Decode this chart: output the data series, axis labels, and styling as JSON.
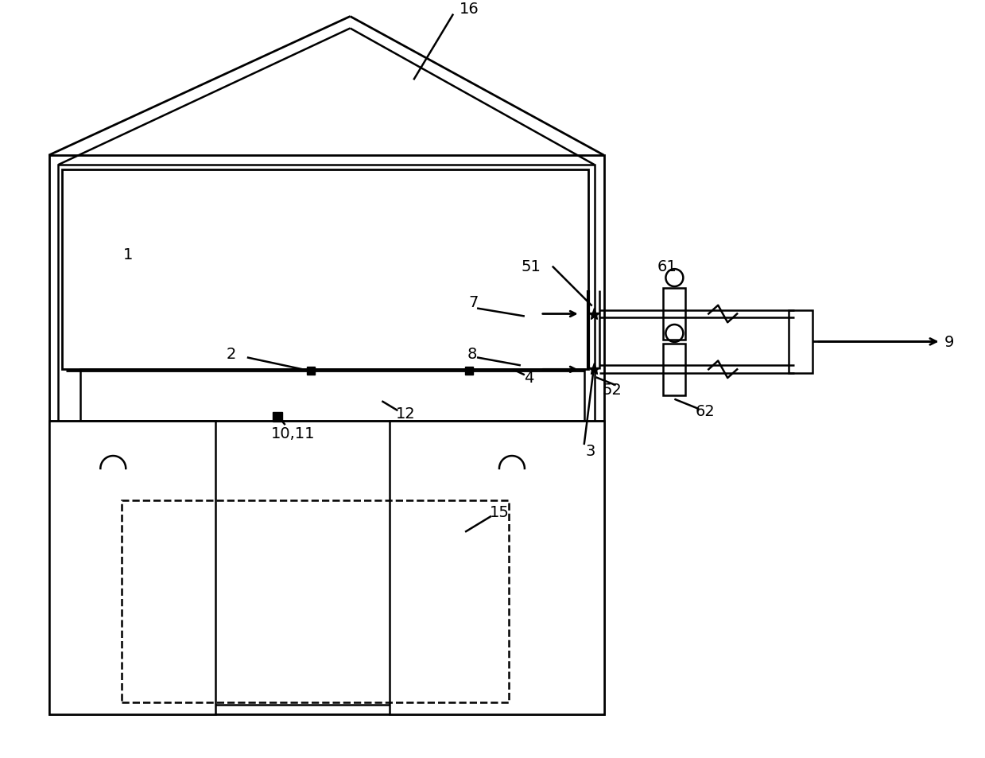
{
  "bg_color": "#ffffff",
  "lc": "#000000",
  "lw": 1.8,
  "fs": 14,
  "fig_w": 12.39,
  "fig_h": 9.54
}
